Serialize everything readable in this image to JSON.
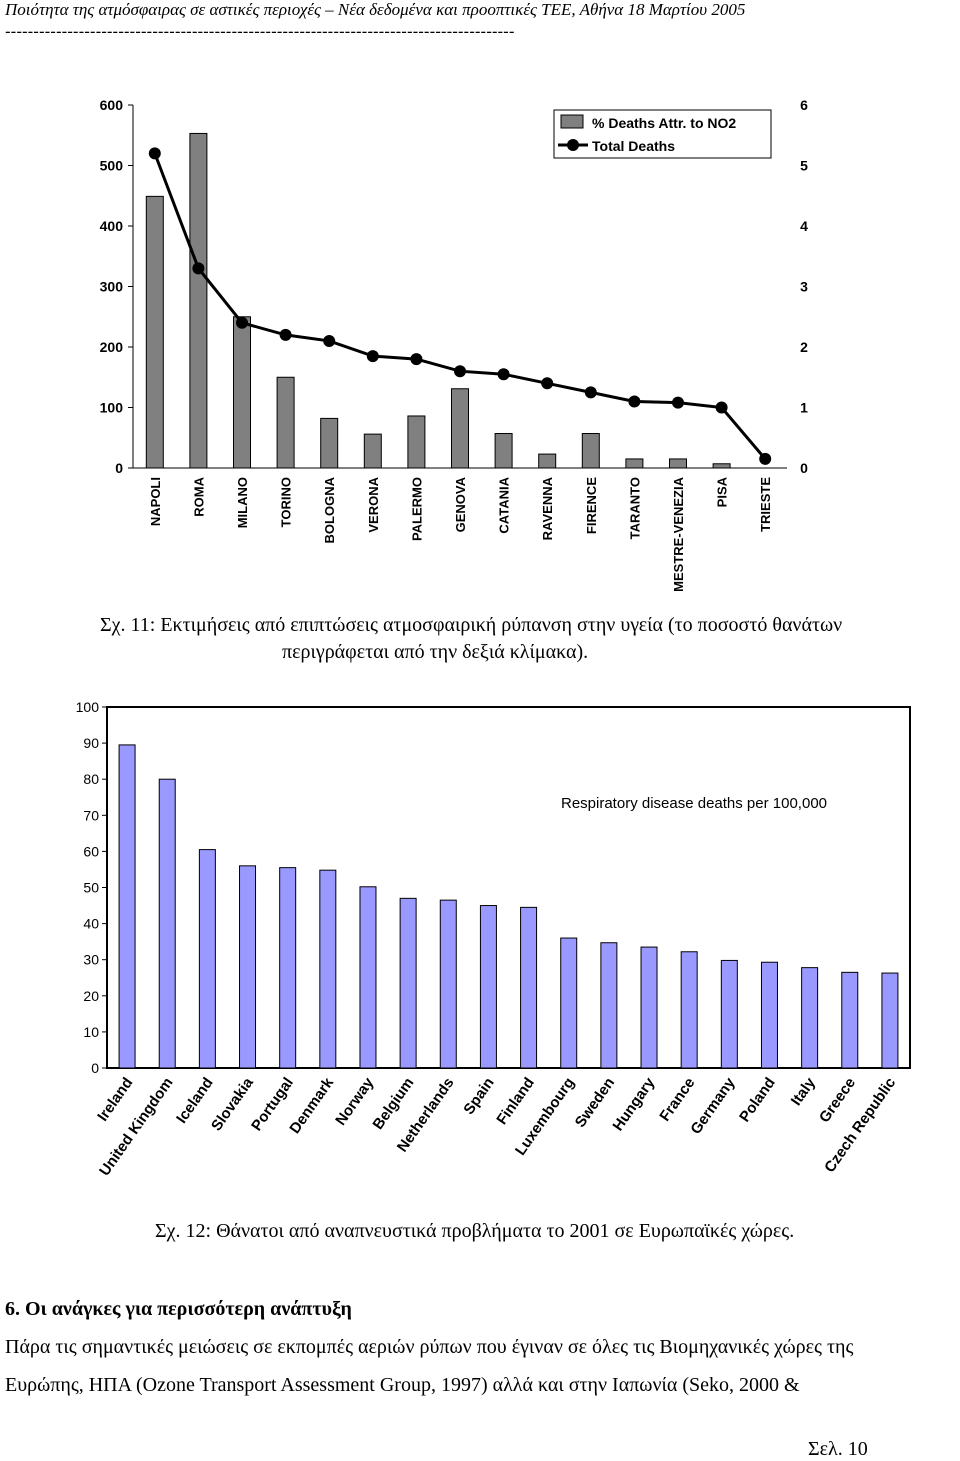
{
  "header": {
    "title": "Ποιότητα της ατμόσφαιρας σε αστικές περιοχές – Νέα δεδομένα και προοπτικές ΤΕΕ, Αθήνα 18 Μαρτίου 2005",
    "rule": "------------------------------------------------------------------------------------------"
  },
  "figure11": {
    "caption_line1": "Σχ. 11: Εκτιμήσεις από επιπτώσεις ατμοσφαιρική ρύπανση στην υγεία (το ποσοστό θανάτων",
    "caption_line2": "περιγράφεται από την δεξιά κλίμακα)."
  },
  "figure12": {
    "caption": "Σχ. 12: Θάνατοι από αναπνευστικά προβλήματα το 2001 σε Ευρωπαϊκές χώρες."
  },
  "section": {
    "heading": "6. Οι ανάγκες για περισσότερη ανάπτυξη",
    "para_line1": "Πάρα τις σημαντικές μειώσεις σε εκπομπές αεριών ρύπων που έγιναν σε όλες τις Βιομηχανικές χώρες της",
    "para_line2": "Ευρώπης, ΗΠΑ (Ozone Transport Assessment Group, 1997) αλλά και στην Ιαπωνία (Seko, 2000 &"
  },
  "page": {
    "number": "Σελ. 10"
  },
  "chart_data": [
    {
      "type": "bar",
      "categories": [
        "NAPOLI",
        "ROMA",
        "MILANO",
        "TORINO",
        "BOLOGNA",
        "VERONA",
        "PALERMO",
        "GENOVA",
        "CATANIA",
        "RAVENNA",
        "FIRENCE",
        "TARANTO",
        "MESTRE-VENEZIA",
        "PISA",
        "TRIESTE"
      ],
      "series": [
        {
          "name": "% Deaths Attr. to NO2",
          "kind": "bar",
          "axis": "left",
          "values": [
            449,
            553,
            250,
            150,
            82,
            56,
            86,
            131,
            57,
            23,
            57,
            15,
            15,
            7,
            0
          ]
        },
        {
          "name": "Total Deaths",
          "kind": "line",
          "axis": "right",
          "values": [
            5.2,
            3.3,
            2.4,
            2.2,
            2.1,
            1.85,
            1.8,
            1.6,
            1.55,
            1.4,
            1.25,
            1.1,
            1.08,
            1.0,
            0.15
          ]
        }
      ],
      "yticks_left": [
        "0",
        "100",
        "200",
        "300",
        "400",
        "500",
        "600"
      ],
      "yticks_right": [
        "0",
        "1",
        "2",
        "3",
        "4",
        "5",
        "6"
      ],
      "ylim_left": [
        0,
        600
      ],
      "ylim_right": [
        0,
        6
      ],
      "legend_position": "top-right",
      "colors": {
        "bar": "#808080",
        "line": "#000000"
      }
    },
    {
      "type": "bar",
      "categories": [
        "Ireland",
        "United Kingdom",
        "Iceland",
        "Slovakia",
        "Portugal",
        "Denmark",
        "Norway",
        "Belgium",
        "Netherlands",
        "Spain",
        "Finland",
        "Luxembourg",
        "Sweden",
        "Hungary",
        "France",
        "Germany",
        "Poland",
        "Italy",
        "Greece",
        "Czech Republic"
      ],
      "values": [
        89.5,
        80,
        60.5,
        56,
        55.5,
        54.8,
        50.2,
        47,
        46.5,
        45,
        44.5,
        36,
        34.7,
        33.5,
        32.2,
        29.8,
        29.3,
        27.8,
        26.5,
        26.3
      ],
      "annotation": "Respiratory disease deaths per 100,000",
      "yticks": [
        "0",
        "10",
        "20",
        "30",
        "40",
        "50",
        "60",
        "70",
        "80",
        "90",
        "100"
      ],
      "ylim": [
        0,
        100
      ],
      "colors": {
        "bar": "#9999ff"
      }
    }
  ]
}
